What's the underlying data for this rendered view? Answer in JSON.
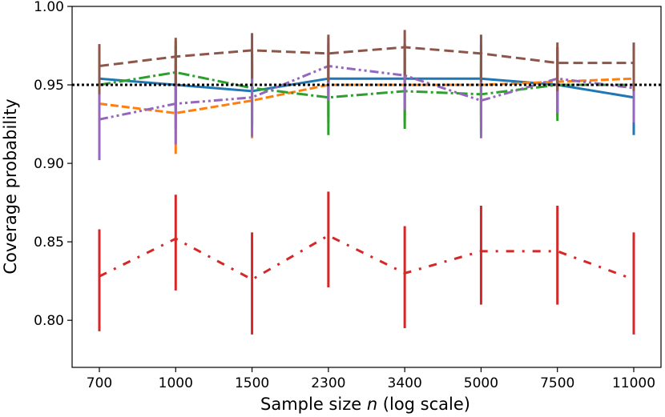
{
  "chart_data": {
    "type": "line",
    "title": "",
    "xlabel_prefix": "Sample size ",
    "xlabel_var": "n",
    "xlabel_suffix": " (log scale)",
    "ylabel": "Coverage probability",
    "categories": [
      "700",
      "1000",
      "1500",
      "2300",
      "3400",
      "5000",
      "7500",
      "11000"
    ],
    "ylim": [
      0.77,
      1.0
    ],
    "yticks": [
      0.8,
      0.85,
      0.9,
      0.95,
      1.0
    ],
    "ytick_labels": [
      "0.80",
      "0.85",
      "0.90",
      "0.95",
      "1.00"
    ],
    "reference_line": {
      "value": 0.95,
      "color": "#000000",
      "style": "dotted"
    },
    "series": [
      {
        "name": "series-blue",
        "color": "#1f77b4",
        "dash": "solid",
        "values": [
          0.954,
          0.95,
          0.946,
          0.954,
          0.954,
          0.954,
          0.95,
          0.942
        ],
        "err_low": [
          0.93,
          0.922,
          0.925,
          0.93,
          0.93,
          0.93,
          0.932,
          0.918
        ],
        "err_high": [
          0.975,
          0.975,
          0.972,
          0.976,
          0.976,
          0.976,
          0.972,
          0.965
        ]
      },
      {
        "name": "series-orange",
        "color": "#ff7f0e",
        "dash": "dashed",
        "values": [
          0.938,
          0.932,
          0.94,
          0.95,
          0.95,
          0.95,
          0.952,
          0.954
        ],
        "err_low": [
          0.908,
          0.906,
          0.916,
          0.926,
          0.926,
          0.926,
          0.93,
          0.932
        ],
        "err_high": [
          0.962,
          0.958,
          0.964,
          0.972,
          0.972,
          0.972,
          0.974,
          0.975
        ]
      },
      {
        "name": "series-green",
        "color": "#2ca02c",
        "dash": "dashdot",
        "values": [
          0.95,
          0.958,
          0.948,
          0.942,
          0.946,
          0.944,
          0.95,
          0.95
        ],
        "err_low": [
          0.925,
          0.935,
          0.924,
          0.918,
          0.922,
          0.92,
          0.927,
          0.927
        ],
        "err_high": [
          0.972,
          0.978,
          0.97,
          0.966,
          0.968,
          0.966,
          0.972,
          0.972
        ]
      },
      {
        "name": "series-red",
        "color": "#d62728",
        "dash": "loosedashdot",
        "values": [
          0.828,
          0.852,
          0.826,
          0.854,
          0.83,
          0.844,
          0.844,
          0.826
        ],
        "err_low": [
          0.793,
          0.819,
          0.791,
          0.821,
          0.795,
          0.81,
          0.81,
          0.791
        ],
        "err_high": [
          0.858,
          0.88,
          0.856,
          0.882,
          0.86,
          0.873,
          0.873,
          0.856
        ]
      },
      {
        "name": "series-purple",
        "color": "#9467bd",
        "dash": "dashdotdot",
        "values": [
          0.928,
          0.938,
          0.942,
          0.962,
          0.956,
          0.94,
          0.954,
          0.948
        ],
        "err_low": [
          0.902,
          0.912,
          0.917,
          0.94,
          0.934,
          0.916,
          0.932,
          0.926
        ],
        "err_high": [
          0.952,
          0.962,
          0.965,
          0.98,
          0.976,
          0.962,
          0.974,
          0.97
        ]
      },
      {
        "name": "series-brown",
        "color": "#8c564b",
        "dash": "longdash",
        "values": [
          0.962,
          0.968,
          0.972,
          0.97,
          0.974,
          0.97,
          0.964,
          0.964
        ],
        "err_low": [
          0.944,
          0.95,
          0.954,
          0.952,
          0.956,
          0.952,
          0.946,
          0.946
        ],
        "err_high": [
          0.976,
          0.98,
          0.983,
          0.982,
          0.985,
          0.982,
          0.977,
          0.977
        ]
      }
    ]
  }
}
